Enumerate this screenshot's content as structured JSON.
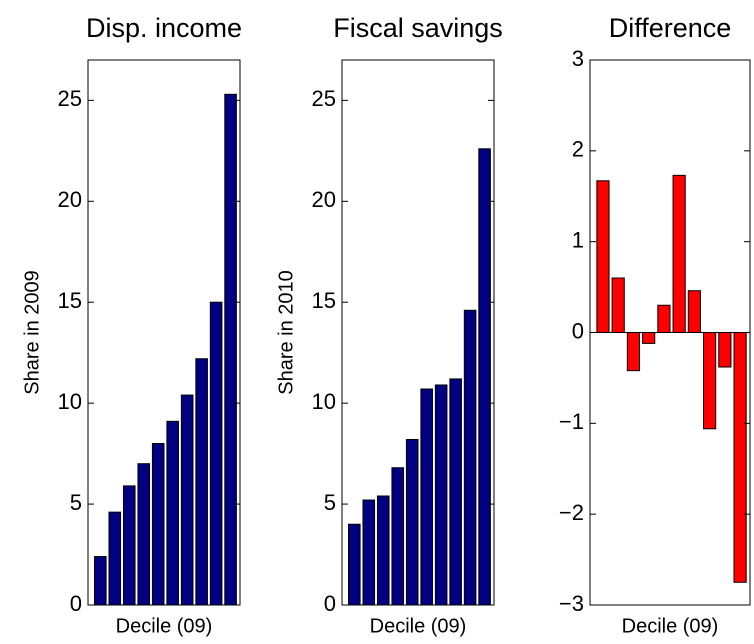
{
  "chart_data": [
    {
      "type": "bar",
      "title": "Disp. income",
      "y_label": "Share in 2009",
      "x_label": "Decile (09)",
      "values": [
        2.4,
        4.6,
        5.9,
        7.0,
        8.0,
        9.1,
        10.4,
        12.2,
        15.0,
        25.3
      ],
      "color": "#000080",
      "ylim": [
        0,
        27
      ],
      "yticks": [
        0,
        5,
        10,
        15,
        20,
        25
      ],
      "grid": false
    },
    {
      "type": "bar",
      "title": "Fiscal savings",
      "y_label": "Share in 2010",
      "x_label": "Decile (09)",
      "values": [
        4.0,
        5.2,
        5.4,
        6.8,
        8.2,
        10.7,
        10.9,
        11.2,
        14.6,
        22.6
      ],
      "color": "#000080",
      "ylim": [
        0,
        27
      ],
      "yticks": [
        0,
        5,
        10,
        15,
        20,
        25
      ],
      "grid": false
    },
    {
      "type": "bar",
      "title": "Difference",
      "x_label": "Decile (09)",
      "values": [
        1.67,
        0.6,
        -0.42,
        -0.12,
        0.3,
        1.73,
        0.46,
        -1.06,
        -0.38,
        -2.75
      ],
      "color": "#ff0000",
      "ylim": [
        -3,
        3
      ],
      "yticks": [
        {
          "value": -3,
          "label": "−3"
        },
        {
          "value": -2,
          "label": "−2"
        },
        {
          "value": -1,
          "label": "−1"
        },
        0,
        1,
        2,
        3
      ],
      "grid": false
    }
  ]
}
